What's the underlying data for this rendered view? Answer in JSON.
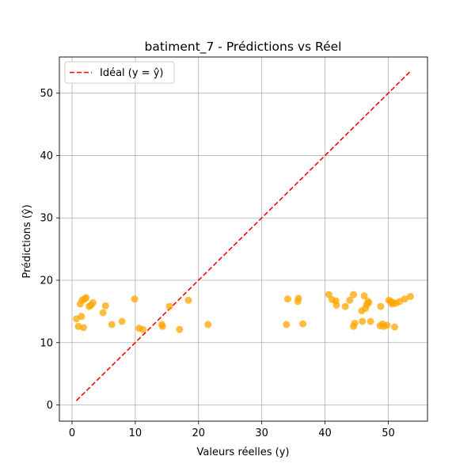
{
  "chart_data": {
    "type": "scatter",
    "title": "batiment_7 - Prédictions vs Réel",
    "xlabel": "Valeurs réelles (y)",
    "ylabel": "Prédictions (ŷ)",
    "xlim": [
      -2,
      56.2
    ],
    "ylim": [
      -2.6,
      55.8
    ],
    "xticks": [
      0,
      10,
      20,
      30,
      40,
      50
    ],
    "yticks": [
      0,
      10,
      20,
      30,
      40,
      50
    ],
    "grid": true,
    "legend_position": "upper-left",
    "colors": {
      "points": "#FFA500",
      "ideal_line": "#FF0000",
      "grid": "#b0b0b0"
    },
    "ideal_line": {
      "label": "Idéal (y = ŷ)",
      "x": [
        0.7,
        53.4
      ],
      "y": [
        0.7,
        53.4
      ]
    },
    "points": [
      {
        "x": 0.7,
        "y": 13.8
      },
      {
        "x": 1.0,
        "y": 12.6
      },
      {
        "x": 1.3,
        "y": 16.2
      },
      {
        "x": 1.5,
        "y": 14.2
      },
      {
        "x": 1.6,
        "y": 16.8
      },
      {
        "x": 1.8,
        "y": 12.4
      },
      {
        "x": 2.0,
        "y": 17.0
      },
      {
        "x": 2.2,
        "y": 17.2
      },
      {
        "x": 2.7,
        "y": 15.8
      },
      {
        "x": 3.0,
        "y": 16.0
      },
      {
        "x": 3.3,
        "y": 16.4
      },
      {
        "x": 4.9,
        "y": 14.8
      },
      {
        "x": 5.3,
        "y": 15.9
      },
      {
        "x": 6.3,
        "y": 12.9
      },
      {
        "x": 7.9,
        "y": 13.4
      },
      {
        "x": 9.9,
        "y": 17.0
      },
      {
        "x": 10.6,
        "y": 12.3
      },
      {
        "x": 11.2,
        "y": 12.1
      },
      {
        "x": 14.2,
        "y": 12.9
      },
      {
        "x": 14.3,
        "y": 12.6
      },
      {
        "x": 15.4,
        "y": 15.8
      },
      {
        "x": 17.0,
        "y": 12.1
      },
      {
        "x": 18.4,
        "y": 16.8
      },
      {
        "x": 21.5,
        "y": 12.9
      },
      {
        "x": 33.9,
        "y": 12.9
      },
      {
        "x": 34.1,
        "y": 17.0
      },
      {
        "x": 35.7,
        "y": 16.6
      },
      {
        "x": 35.8,
        "y": 17.1
      },
      {
        "x": 36.5,
        "y": 13.0
      },
      {
        "x": 40.6,
        "y": 17.7
      },
      {
        "x": 41.1,
        "y": 16.9
      },
      {
        "x": 41.7,
        "y": 16.7
      },
      {
        "x": 41.8,
        "y": 16.0
      },
      {
        "x": 43.2,
        "y": 15.8
      },
      {
        "x": 43.9,
        "y": 16.8
      },
      {
        "x": 44.5,
        "y": 17.7
      },
      {
        "x": 44.5,
        "y": 12.6
      },
      {
        "x": 44.7,
        "y": 13.1
      },
      {
        "x": 45.8,
        "y": 15.1
      },
      {
        "x": 45.9,
        "y": 13.4
      },
      {
        "x": 46.2,
        "y": 17.5
      },
      {
        "x": 46.4,
        "y": 15.5
      },
      {
        "x": 46.6,
        "y": 16.1
      },
      {
        "x": 46.8,
        "y": 16.6
      },
      {
        "x": 46.9,
        "y": 16.4
      },
      {
        "x": 47.2,
        "y": 13.4
      },
      {
        "x": 48.7,
        "y": 12.7
      },
      {
        "x": 48.8,
        "y": 15.8
      },
      {
        "x": 49.1,
        "y": 13.0
      },
      {
        "x": 49.3,
        "y": 12.6
      },
      {
        "x": 49.8,
        "y": 12.8
      },
      {
        "x": 50.1,
        "y": 16.8
      },
      {
        "x": 50.4,
        "y": 16.6
      },
      {
        "x": 50.6,
        "y": 16.2
      },
      {
        "x": 50.8,
        "y": 16.4
      },
      {
        "x": 51.0,
        "y": 12.5
      },
      {
        "x": 51.2,
        "y": 16.3
      },
      {
        "x": 51.8,
        "y": 16.6
      },
      {
        "x": 52.6,
        "y": 17.0
      },
      {
        "x": 53.5,
        "y": 17.4
      }
    ]
  }
}
